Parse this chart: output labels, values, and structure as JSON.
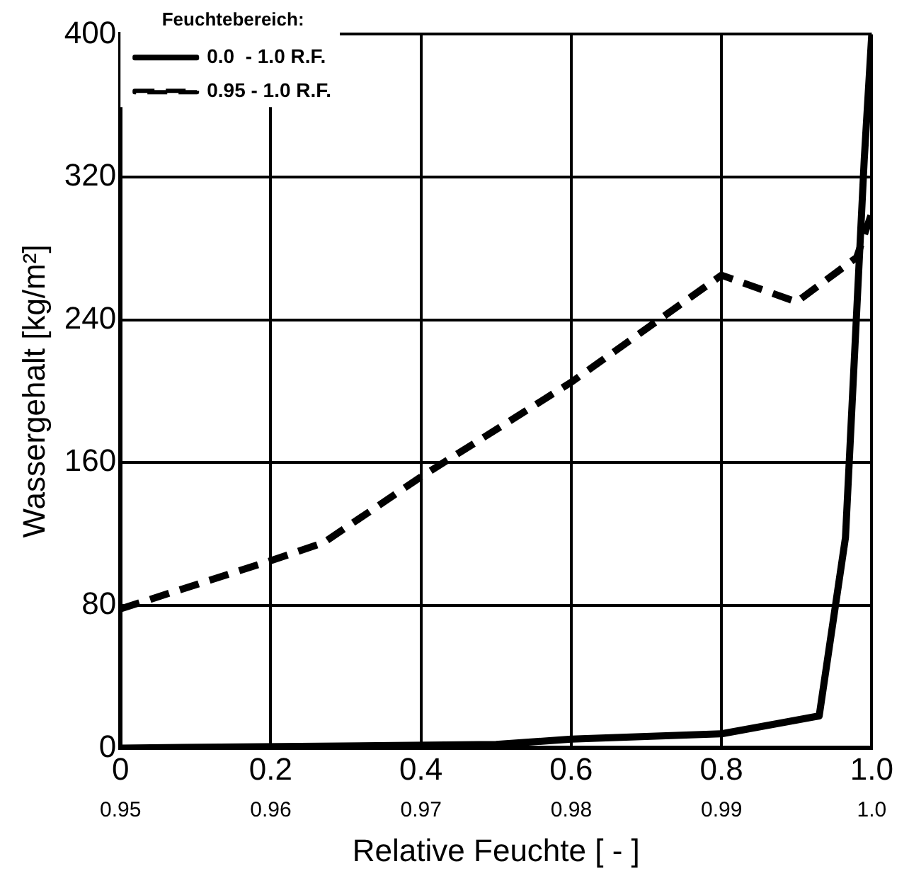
{
  "chart_data": {
    "type": "line",
    "xlabel": "Relative Feuchte [ - ]",
    "ylabel": "Wassergehalt [kg/m²]",
    "legend_title": "Feuchtebereich:",
    "legend": "top left",
    "grid": true,
    "marker": "none",
    "xlim": [
      0,
      1
    ],
    "xticks": [
      0,
      0.2,
      0.4,
      0.6,
      0.8,
      {
        "value": 1,
        "label": "1.0"
      }
    ],
    "x2lim": [
      0.95,
      1
    ],
    "x2ticks": [
      0.95,
      0.96,
      0.97,
      0.98,
      0.99,
      {
        "value": 1,
        "label": "1.0"
      }
    ],
    "ylim": [
      0,
      400
    ],
    "yticks": [
      0,
      80,
      160,
      240,
      320,
      400
    ],
    "series": [
      {
        "name": "0.0  - 1.0 R.F.",
        "color": "#000000",
        "line_style": "solid",
        "x": [
          0,
          0.5,
          0.6,
          0.8,
          0.93,
          0.965,
          0.99,
          1
        ],
        "values": [
          0,
          2,
          5,
          8,
          18,
          118,
          330,
          400
        ]
      },
      {
        "name": "0.95 - 1.0 R.F.",
        "color": "#000000",
        "line_style": "dashed",
        "axis": "x2",
        "x": [
          0.95,
          0.96,
          0.9635,
          0.97,
          0.98,
          0.99,
          0.995,
          0.999,
          1
        ],
        "values": [
          78,
          105,
          115,
          152,
          205,
          265,
          250,
          275,
          300
        ]
      }
    ]
  }
}
